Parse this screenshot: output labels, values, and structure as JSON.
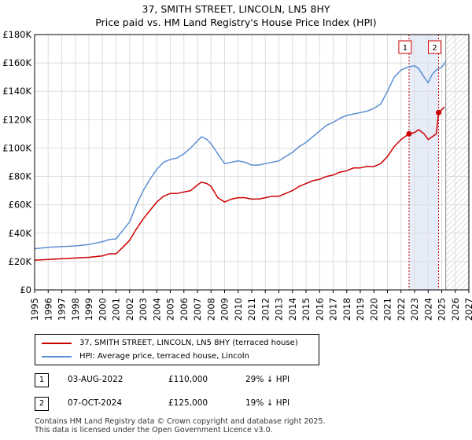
{
  "title_line1": "37, SMITH STREET, LINCOLN, LN5 8HY",
  "title_line2": "Price paid vs. HM Land Registry's House Price Index (HPI)",
  "colors": {
    "property": "#cc0000",
    "hpi": "#5b8fd4",
    "band": "#dce6f5",
    "marker_line": "#cc0000"
  },
  "chart_data": {
    "type": "line",
    "x_range": [
      1995,
      2027
    ],
    "y_range": [
      0,
      180000
    ],
    "y_ticks": [
      0,
      20000,
      40000,
      60000,
      80000,
      100000,
      120000,
      140000,
      160000,
      180000
    ],
    "y_tick_labels": [
      "£0",
      "£20K",
      "£40K",
      "£60K",
      "£80K",
      "£100K",
      "£120K",
      "£140K",
      "£160K",
      "£180K"
    ],
    "x_ticks": [
      1995,
      1996,
      1997,
      1998,
      1999,
      2000,
      2001,
      2002,
      2003,
      2004,
      2005,
      2006,
      2007,
      2008,
      2009,
      2010,
      2011,
      2012,
      2013,
      2014,
      2015,
      2016,
      2017,
      2018,
      2019,
      2020,
      2021,
      2022,
      2023,
      2024,
      2025,
      2026,
      2027
    ],
    "x_tick_labels": [
      "1995",
      "1996",
      "1997",
      "1998",
      "1999",
      "2000",
      "2001",
      "2002",
      "2003",
      "2004",
      "2005",
      "2006",
      "2007",
      "2008",
      "2009",
      "2010",
      "2011",
      "2012",
      "2013",
      "2014",
      "2015",
      "2016",
      "2017",
      "2018",
      "2019",
      "2020",
      "2021",
      "2022",
      "2023",
      "2024",
      "2025",
      "2026",
      "2027"
    ],
    "highlight_band": [
      2022.59,
      2024.77
    ],
    "forecast_start": 2025.3,
    "series": [
      {
        "name": "37, SMITH STREET, LINCOLN, LN5 8HY (terraced house)",
        "color": "#cc0000",
        "x": [
          1995,
          1996,
          1997,
          1998,
          1999,
          2000,
          2000.5,
          2001,
          2001.5,
          2002,
          2002.5,
          2003,
          2003.5,
          2004,
          2004.5,
          2005,
          2005.5,
          2006,
          2006.5,
          2007,
          2007.3,
          2007.7,
          2008,
          2008.5,
          2009,
          2009.5,
          2010,
          2010.5,
          2011,
          2011.5,
          2012,
          2012.5,
          2013,
          2013.5,
          2014,
          2014.5,
          2015,
          2015.5,
          2016,
          2016.5,
          2017,
          2017.5,
          2018,
          2018.5,
          2019,
          2019.5,
          2020,
          2020.5,
          2021,
          2021.5,
          2022,
          2022.59,
          2023,
          2023.3,
          2023.7,
          2024,
          2024.3,
          2024.6,
          2024.77,
          2025,
          2025.2
        ],
        "values": [
          21000,
          21500,
          22000,
          22500,
          23000,
          24000,
          25500,
          25500,
          30000,
          35000,
          43000,
          50000,
          56000,
          62000,
          66000,
          68000,
          68000,
          69000,
          70000,
          74000,
          76000,
          75000,
          73000,
          65000,
          62000,
          64000,
          65000,
          65000,
          64000,
          64000,
          65000,
          66000,
          66000,
          68000,
          70000,
          73000,
          75000,
          77000,
          78000,
          80000,
          81000,
          83000,
          84000,
          86000,
          86000,
          87000,
          87000,
          89000,
          94000,
          101000,
          106000,
          110000,
          111000,
          113000,
          110000,
          106000,
          108000,
          110000,
          125000,
          127000,
          129000
        ]
      },
      {
        "name": "HPI: Average price, terraced house, Lincoln",
        "color": "#5b8fd4",
        "x": [
          1995,
          1996,
          1997,
          1998,
          1999,
          2000,
          2000.5,
          2001,
          2001.5,
          2002,
          2002.5,
          2003,
          2003.5,
          2004,
          2004.5,
          2005,
          2005.5,
          2006,
          2006.5,
          2007,
          2007.3,
          2007.7,
          2008,
          2008.5,
          2009,
          2009.5,
          2010,
          2010.5,
          2011,
          2011.5,
          2012,
          2012.5,
          2013,
          2013.5,
          2014,
          2014.5,
          2015,
          2015.5,
          2016,
          2016.5,
          2017,
          2017.5,
          2018,
          2018.5,
          2019,
          2019.5,
          2020,
          2020.5,
          2021,
          2021.5,
          2022,
          2022.5,
          2023,
          2023.3,
          2023.7,
          2024,
          2024.3,
          2024.6,
          2025,
          2025.3
        ],
        "values": [
          29000,
          30000,
          30500,
          31000,
          32000,
          34000,
          35500,
          36000,
          42000,
          48000,
          60000,
          70000,
          78000,
          85000,
          90000,
          92000,
          93000,
          96000,
          100000,
          105000,
          108000,
          106000,
          103000,
          96000,
          89000,
          90000,
          91000,
          90000,
          88000,
          88000,
          89000,
          90000,
          91000,
          94000,
          97000,
          101000,
          104000,
          108000,
          112000,
          116000,
          118000,
          121000,
          123000,
          124000,
          125000,
          126000,
          128000,
          131000,
          140000,
          150000,
          155000,
          157000,
          158000,
          156000,
          150000,
          146000,
          152000,
          155000,
          157000,
          161000
        ]
      }
    ],
    "sales": [
      {
        "label": "1",
        "x": 2022.59,
        "value": 110000
      },
      {
        "label": "2",
        "x": 2024.77,
        "value": 125000
      }
    ]
  },
  "legend": {
    "property_label": "37, SMITH STREET, LINCOLN, LN5 8HY (terraced house)",
    "hpi_label": "HPI: Average price, terraced house, Lincoln"
  },
  "sales_table": [
    {
      "num": "1",
      "date": "03-AUG-2022",
      "price": "£110,000",
      "hpi": "29% ↓ HPI"
    },
    {
      "num": "2",
      "date": "07-OCT-2024",
      "price": "£125,000",
      "hpi": "19% ↓ HPI"
    }
  ],
  "footer_line1": "Contains HM Land Registry data © Crown copyright and database right 2025.",
  "footer_line2": "This data is licensed under the Open Government Licence v3.0."
}
